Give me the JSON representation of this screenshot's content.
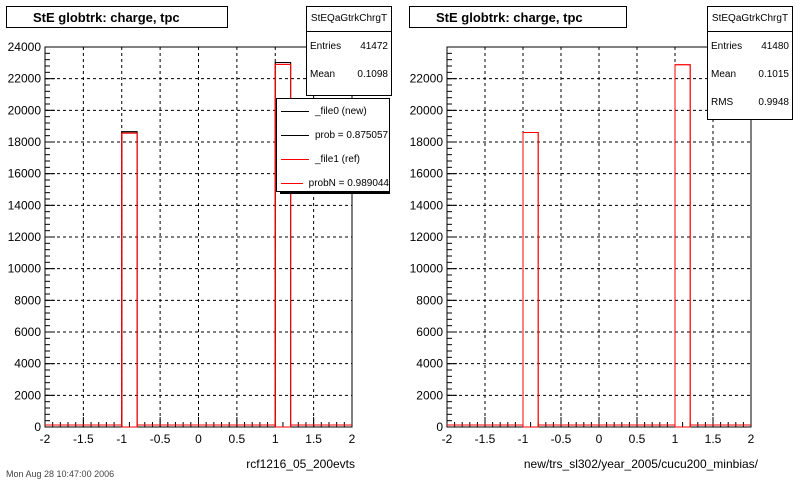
{
  "footer_text": "Mon Aug 28 10:47:00 2006",
  "chart_data": [
    {
      "type": "bar",
      "title": "StE globtrk: charge, tpc",
      "xlabel": "rcf1216_05_200evts",
      "ylabel": "",
      "xlim": [
        -2,
        2
      ],
      "ylim": [
        0,
        24000
      ],
      "x_ticks": [
        "-2",
        "-1.5",
        "-1",
        "-0.5",
        "0",
        "0.5",
        "1",
        "1.5",
        "2"
      ],
      "y_ticks": [
        "0",
        "2000",
        "4000",
        "6000",
        "8000",
        "10000",
        "12000",
        "14000",
        "16000",
        "18000",
        "20000",
        "22000",
        "24000"
      ],
      "grid": true,
      "bin_edges": [
        -1.0,
        -0.8,
        1.0,
        1.2
      ],
      "series": [
        {
          "name": "_file0 (new)",
          "color": "#000000",
          "bins": [
            {
              "x0": -1.0,
              "x1": -0.8,
              "y": 18650
            },
            {
              "x0": 1.0,
              "x1": 1.2,
              "y": 23020
            }
          ]
        },
        {
          "name": "_file1 (ref)",
          "color": "#ff0000",
          "bins": [
            {
              "x0": -1.0,
              "x1": -0.8,
              "y": 18560
            },
            {
              "x0": 1.0,
              "x1": 1.2,
              "y": 22900
            }
          ]
        }
      ],
      "stats": {
        "name": "StEQaGtrkChrgT",
        "rows": [
          [
            "Entries",
            "41472"
          ],
          [
            "Mean",
            "0.1098"
          ]
        ]
      },
      "legend": [
        {
          "label": "_file0 (new)",
          "color": "#000000"
        },
        {
          "label": "prob = 0.875057",
          "color": "#000000"
        },
        {
          "label": "_file1 (ref)",
          "color": "#ff0000"
        },
        {
          "label": "probN = 0.989044",
          "color": "#ff0000"
        }
      ]
    },
    {
      "type": "bar",
      "title": "StE globtrk: charge, tpc",
      "xlabel": "new/trs_sl302/year_2005/cucu200_minbias/",
      "ylabel": "",
      "xlim": [
        -2,
        2
      ],
      "ylim": [
        0,
        24000
      ],
      "x_ticks": [
        "-2",
        "-1.5",
        "-1",
        "-0.5",
        "0",
        "0.5",
        "1",
        "1.5",
        "2"
      ],
      "y_ticks": [
        "0",
        "2000",
        "4000",
        "6000",
        "8000",
        "10000",
        "12000",
        "14000",
        "16000",
        "18000",
        "20000",
        "22000"
      ],
      "grid": true,
      "bin_edges": [
        -1.0,
        -0.8,
        1.0,
        1.2
      ],
      "series": [
        {
          "name": "",
          "color": "#ff0000",
          "bins": [
            {
              "x0": -1.0,
              "x1": -0.8,
              "y": 18600
            },
            {
              "x0": 1.0,
              "x1": 1.2,
              "y": 22880
            }
          ]
        }
      ],
      "stats": {
        "name": "StEQaGtrkChrgT",
        "rows": [
          [
            "Entries",
            "41480"
          ],
          [
            "Mean",
            "0.1015"
          ],
          [
            "RMS",
            "0.9948"
          ]
        ]
      },
      "legend": []
    }
  ]
}
